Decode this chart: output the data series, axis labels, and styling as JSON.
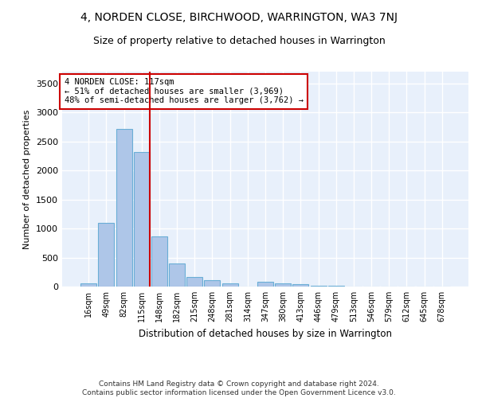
{
  "title1": "4, NORDEN CLOSE, BIRCHWOOD, WARRINGTON, WA3 7NJ",
  "title2": "Size of property relative to detached houses in Warrington",
  "xlabel": "Distribution of detached houses by size in Warrington",
  "ylabel": "Number of detached properties",
  "categories": [
    "16sqm",
    "49sqm",
    "82sqm",
    "115sqm",
    "148sqm",
    "182sqm",
    "215sqm",
    "248sqm",
    "281sqm",
    "314sqm",
    "347sqm",
    "380sqm",
    "413sqm",
    "446sqm",
    "479sqm",
    "513sqm",
    "546sqm",
    "579sqm",
    "612sqm",
    "645sqm",
    "678sqm"
  ],
  "values": [
    50,
    1090,
    2720,
    2310,
    870,
    400,
    170,
    110,
    60,
    0,
    80,
    50,
    40,
    20,
    10,
    5,
    2,
    0,
    0,
    0,
    0
  ],
  "bar_color": "#aec6e8",
  "bar_edgecolor": "#6aaed6",
  "annotation_text": "4 NORDEN CLOSE: 117sqm\n← 51% of detached houses are smaller (3,969)\n48% of semi-detached houses are larger (3,762) →",
  "vline_color": "#cc0000",
  "ylim": [
    0,
    3700
  ],
  "yticks": [
    0,
    500,
    1000,
    1500,
    2000,
    2500,
    3000,
    3500
  ],
  "background_color": "#e8f0fb",
  "grid_color": "#ffffff",
  "footer": "Contains HM Land Registry data © Crown copyright and database right 2024.\nContains public sector information licensed under the Open Government Licence v3.0.",
  "title1_fontsize": 10,
  "title2_fontsize": 9,
  "xlabel_fontsize": 8.5,
  "ylabel_fontsize": 8
}
